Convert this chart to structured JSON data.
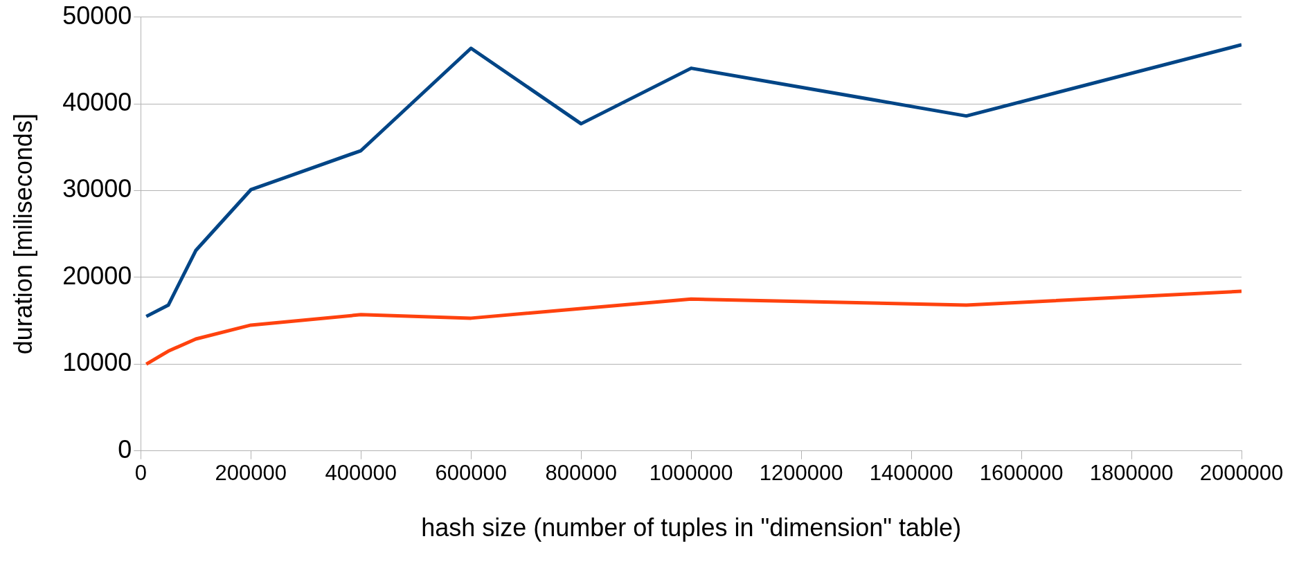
{
  "chart_data": {
    "type": "line",
    "xlabel": "hash size (number of tuples in \"dimension\" table)",
    "ylabel": "duration [miliseconds]",
    "x": [
      10000,
      50000,
      100000,
      200000,
      400000,
      600000,
      800000,
      1000000,
      1500000,
      2000000
    ],
    "series": [
      {
        "color": "#004586",
        "values": [
          15500,
          16800,
          23100,
          30100,
          34600,
          46400,
          37700,
          44100,
          38600,
          46800
        ]
      },
      {
        "color": "#ff420e",
        "values": [
          10000,
          11500,
          12900,
          14500,
          15700,
          15300,
          16400,
          17500,
          16800,
          18400
        ]
      }
    ],
    "xlim": [
      0,
      2000000
    ],
    "xticks": [
      0,
      200000,
      400000,
      600000,
      800000,
      1000000,
      1200000,
      1400000,
      1600000,
      1800000,
      2000000
    ],
    "ylim": [
      0,
      50000
    ],
    "yticks": [
      0,
      10000,
      20000,
      30000,
      40000,
      50000
    ],
    "grid": "y",
    "legend": false,
    "marker": "none",
    "line_style": "solid"
  }
}
